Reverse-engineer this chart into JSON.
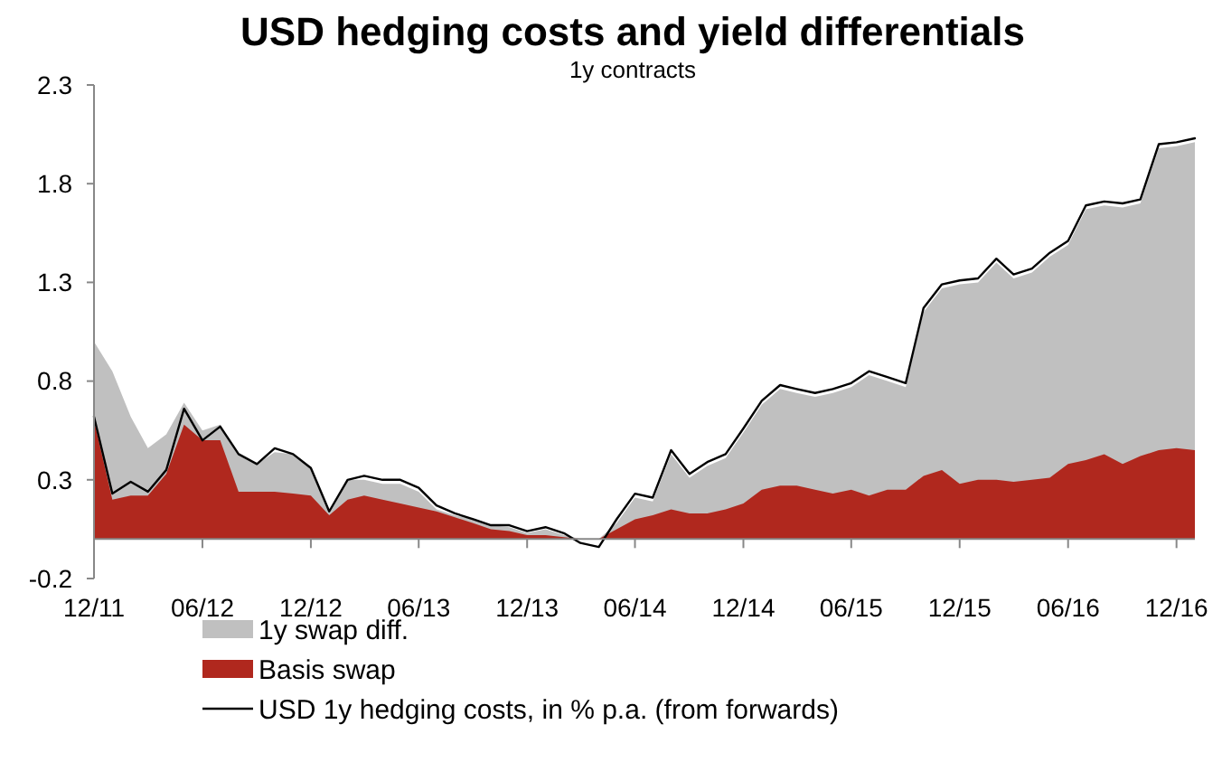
{
  "chart_data": {
    "type": "area",
    "title": "USD hedging costs and yield differentials",
    "subtitle": "1y contracts",
    "x": [
      "2011-12",
      "2012-01",
      "2012-02",
      "2012-03",
      "2012-04",
      "2012-05",
      "2012-06",
      "2012-07",
      "2012-08",
      "2012-09",
      "2012-10",
      "2012-11",
      "2012-12",
      "2013-01",
      "2013-02",
      "2013-03",
      "2013-04",
      "2013-05",
      "2013-06",
      "2013-07",
      "2013-08",
      "2013-09",
      "2013-10",
      "2013-11",
      "2013-12",
      "2014-01",
      "2014-02",
      "2014-03",
      "2014-04",
      "2014-05",
      "2014-06",
      "2014-07",
      "2014-08",
      "2014-09",
      "2014-10",
      "2014-11",
      "2014-12",
      "2015-01",
      "2015-02",
      "2015-03",
      "2015-04",
      "2015-05",
      "2015-06",
      "2015-07",
      "2015-08",
      "2015-09",
      "2015-10",
      "2015-11",
      "2015-12",
      "2016-01",
      "2016-02",
      "2016-03",
      "2016-04",
      "2016-05",
      "2016-06",
      "2016-07",
      "2016-08",
      "2016-09",
      "2016-10",
      "2016-11",
      "2016-12",
      "2017-01"
    ],
    "series": [
      {
        "name": "1y swap diff.",
        "color": "#c0c0c0",
        "values": [
          1.0,
          0.85,
          0.62,
          0.46,
          0.53,
          0.69,
          0.55,
          0.58,
          0.43,
          0.38,
          0.44,
          0.43,
          0.36,
          0.14,
          0.3,
          0.3,
          0.28,
          0.28,
          0.24,
          0.15,
          0.12,
          0.1,
          0.07,
          0.06,
          0.03,
          0.05,
          0.02,
          0,
          0,
          0.08,
          0.21,
          0.19,
          0.43,
          0.31,
          0.37,
          0.41,
          0.54,
          0.68,
          0.76,
          0.74,
          0.72,
          0.74,
          0.77,
          0.83,
          0.8,
          0.77,
          1.15,
          1.27,
          1.29,
          1.3,
          1.4,
          1.32,
          1.35,
          1.43,
          1.49,
          1.67,
          1.69,
          1.68,
          1.7,
          1.98,
          1.99,
          2.01
        ]
      },
      {
        "name": "Basis swap",
        "color": "#b0281e",
        "values": [
          0.6,
          0.2,
          0.22,
          0.22,
          0.33,
          0.58,
          0.5,
          0.5,
          0.24,
          0.24,
          0.24,
          0.23,
          0.22,
          0.12,
          0.2,
          0.22,
          0.2,
          0.18,
          0.16,
          0.14,
          0.11,
          0.08,
          0.05,
          0.04,
          0.02,
          0.02,
          0.01,
          0,
          0,
          0.05,
          0.1,
          0.12,
          0.15,
          0.13,
          0.13,
          0.15,
          0.18,
          0.25,
          0.27,
          0.27,
          0.25,
          0.23,
          0.25,
          0.22,
          0.25,
          0.25,
          0.32,
          0.35,
          0.28,
          0.3,
          0.3,
          0.29,
          0.3,
          0.31,
          0.38,
          0.4,
          0.43,
          0.38,
          0.42,
          0.45,
          0.46,
          0.45
        ]
      },
      {
        "name": "USD 1y hedging costs, in % p.a. (from forwards)",
        "type": "line",
        "color": "#000000",
        "values": [
          0.62,
          0.23,
          0.29,
          0.24,
          0.35,
          0.66,
          0.5,
          0.57,
          0.43,
          0.38,
          0.46,
          0.43,
          0.36,
          0.14,
          0.3,
          0.32,
          0.3,
          0.3,
          0.26,
          0.17,
          0.13,
          0.1,
          0.07,
          0.07,
          0.04,
          0.06,
          0.03,
          -0.02,
          -0.04,
          0.1,
          0.23,
          0.21,
          0.45,
          0.33,
          0.39,
          0.43,
          0.56,
          0.7,
          0.78,
          0.76,
          0.74,
          0.76,
          0.79,
          0.85,
          0.82,
          0.79,
          1.17,
          1.29,
          1.31,
          1.32,
          1.42,
          1.34,
          1.37,
          1.45,
          1.51,
          1.69,
          1.71,
          1.7,
          1.72,
          2.0,
          2.01,
          2.03
        ]
      }
    ],
    "xlim": [
      "2011-12",
      "2017-01"
    ],
    "xticks": [
      {
        "value": "2011-12",
        "label": "12/11"
      },
      {
        "value": "2012-06",
        "label": "06/12"
      },
      {
        "value": "2012-12",
        "label": "12/12"
      },
      {
        "value": "2013-06",
        "label": "06/13"
      },
      {
        "value": "2013-12",
        "label": "12/13"
      },
      {
        "value": "2014-06",
        "label": "06/14"
      },
      {
        "value": "2014-12",
        "label": "12/14"
      },
      {
        "value": "2015-06",
        "label": "06/15"
      },
      {
        "value": "2015-12",
        "label": "12/15"
      },
      {
        "value": "2016-06",
        "label": "06/16"
      },
      {
        "value": "2016-12",
        "label": "12/16"
      }
    ],
    "ylim": [
      -0.2,
      2.3
    ],
    "yticks": [
      -0.2,
      0.3,
      0.8,
      1.3,
      1.8,
      2.3
    ],
    "grid": false,
    "legend": "bottom"
  }
}
